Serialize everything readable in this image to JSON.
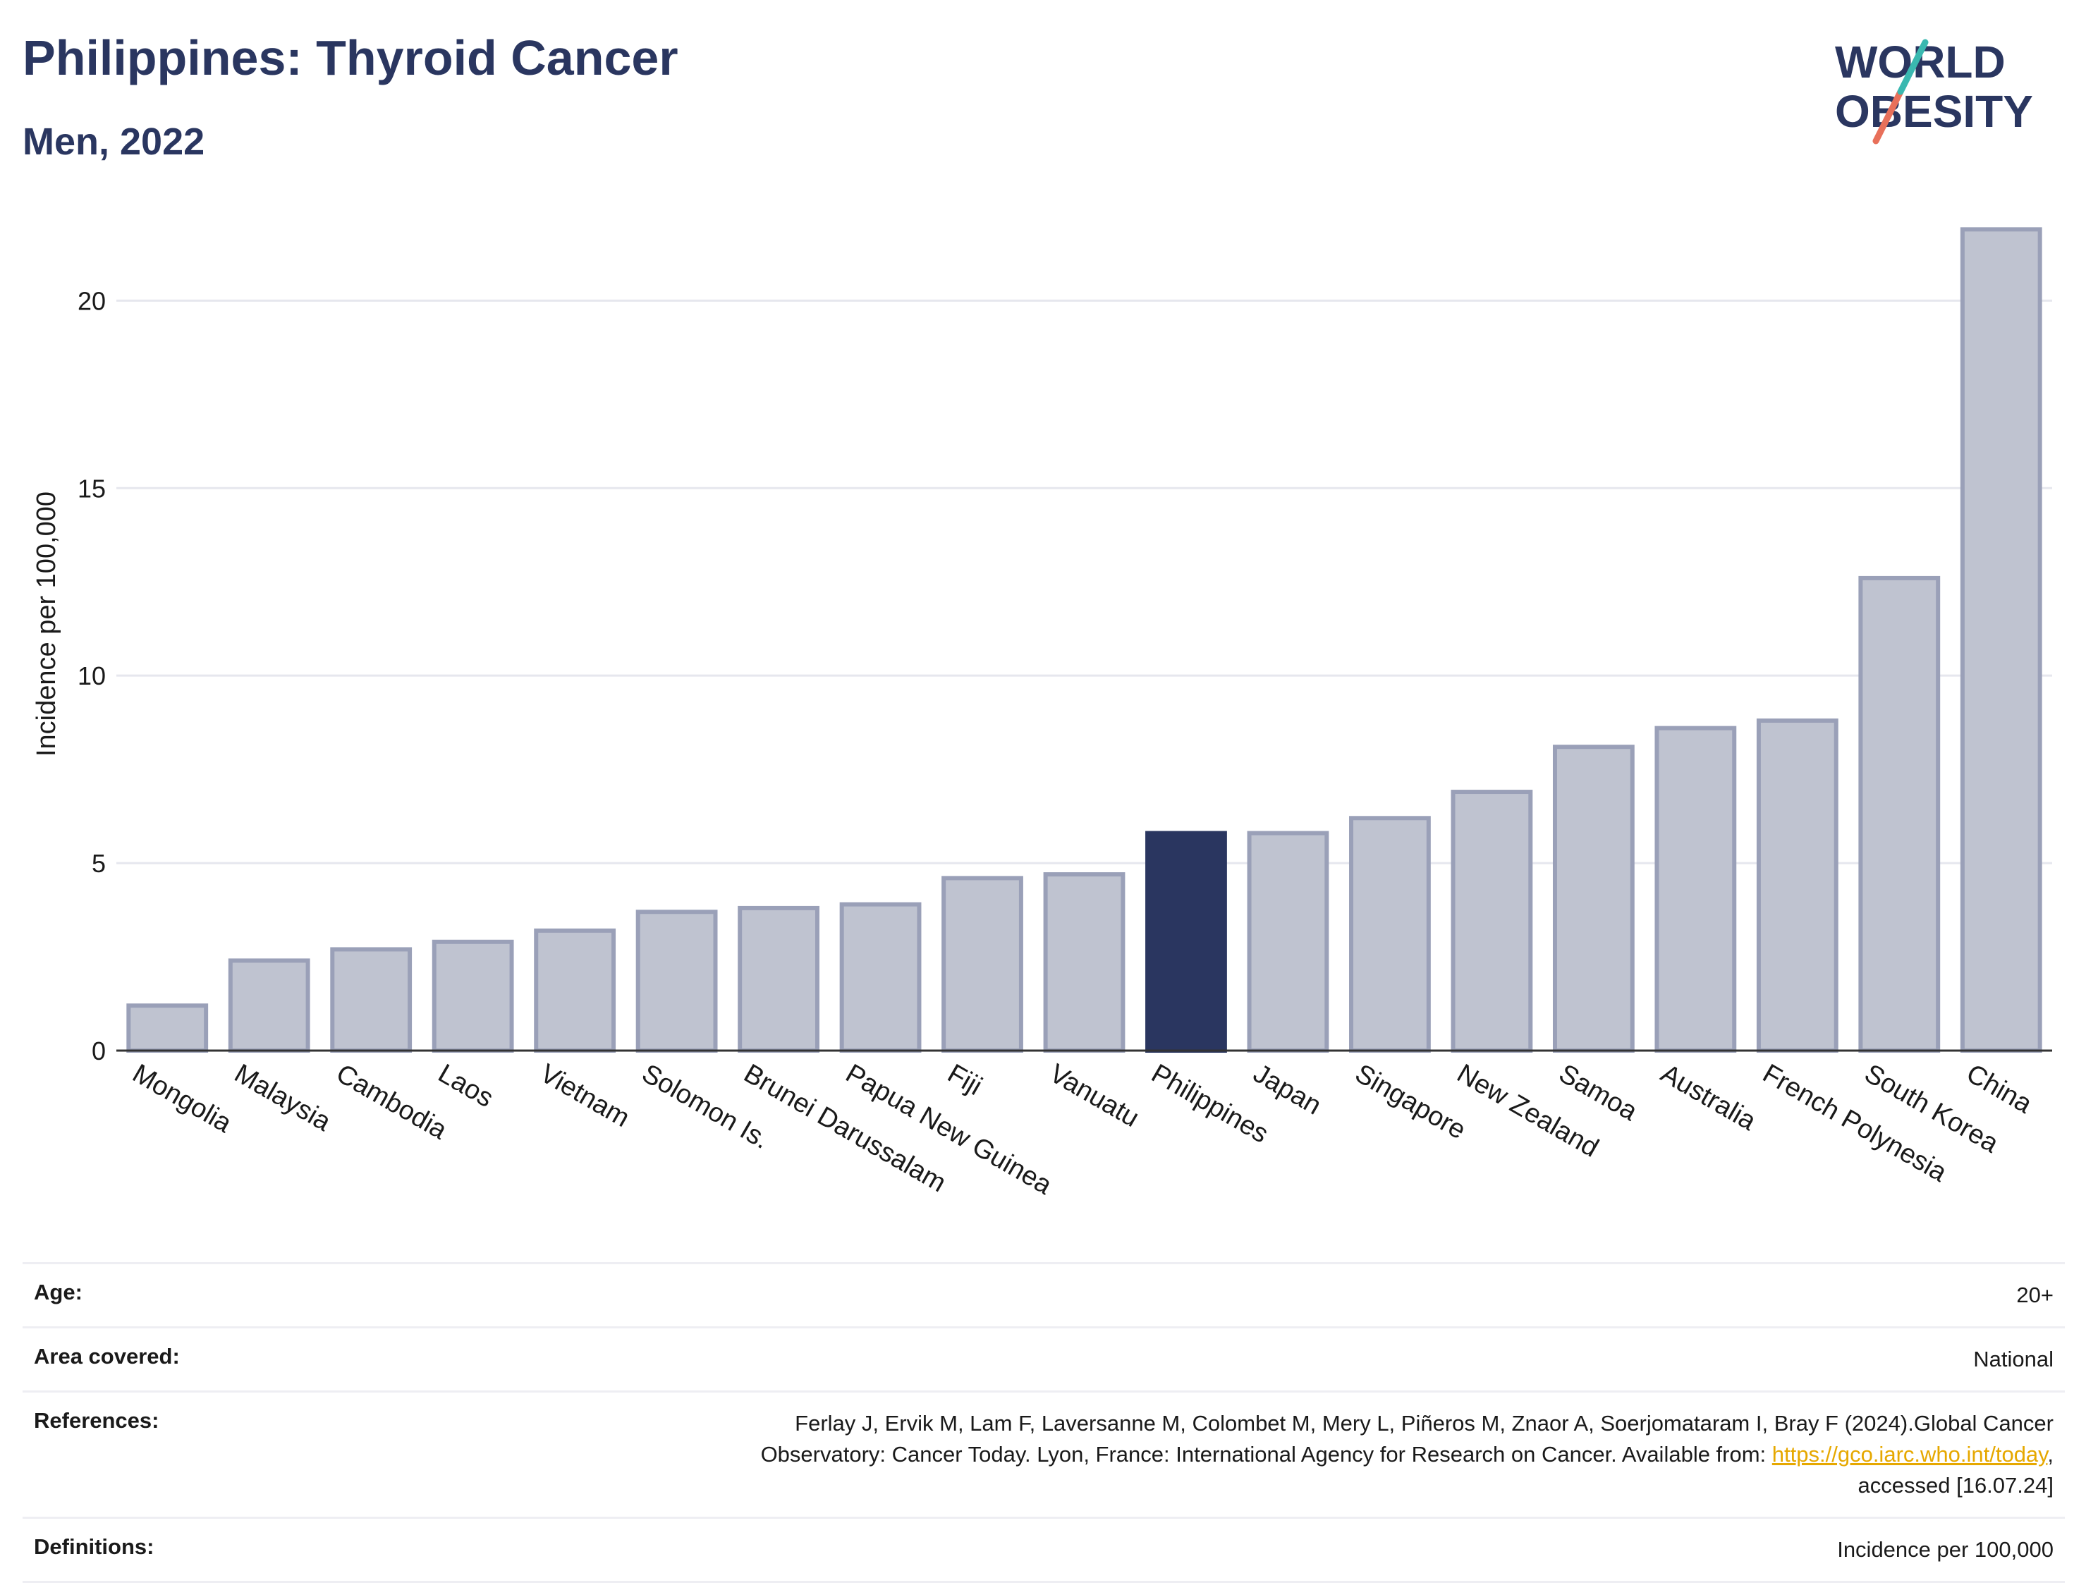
{
  "header": {
    "title": "Philippines: Thyroid Cancer",
    "subtitle": "Men, 2022",
    "logo_line1": "WORLD",
    "logo_line2": "OBESITY"
  },
  "colors": {
    "highlight": "#2a3660",
    "bar": "#bfc3d0",
    "bar_border": "#9aa0b8",
    "text": "#2a3660",
    "link": "#e6a800",
    "logo_teal": "#3ab8b0",
    "logo_coral": "#e8705a"
  },
  "chart_data": {
    "type": "bar",
    "ylabel": "Incidence per 100,000",
    "ylim": [
      0,
      22
    ],
    "yticks": [
      0,
      5,
      10,
      15,
      20
    ],
    "highlight": "Philippines",
    "grid": true,
    "categories": [
      "Mongolia",
      "Malaysia",
      "Cambodia",
      "Laos",
      "Vietnam",
      "Solomon Is.",
      "Brunei Darussalam",
      "Papua New Guinea",
      "Fiji",
      "Vanuatu",
      "Philippines",
      "Japan",
      "Singapore",
      "New Zealand",
      "Samoa",
      "Australia",
      "French Polynesia",
      "South Korea",
      "China"
    ],
    "values": [
      1.2,
      2.4,
      2.7,
      2.9,
      3.2,
      3.7,
      3.8,
      3.9,
      4.6,
      4.7,
      5.8,
      5.8,
      6.2,
      6.9,
      8.1,
      8.6,
      8.8,
      12.6,
      21.9
    ]
  },
  "info": {
    "age_label": "Age:",
    "age_value": "20+",
    "area_label": "Area covered:",
    "area_value": "National",
    "refs_label": "References:",
    "refs_line1": "Ferlay J, Ervik M, Lam F, Laversanne M, Colombet M, Mery L, Piñeros M, Znaor A, Soerjomataram I, Bray F (2024).Global Cancer",
    "refs_line2": "Observatory: Cancer Today. Lyon, France: International Agency for Research on Cancer. Available from: ",
    "refs_link": "https://gco.iarc.who.int/today",
    "refs_line2_end": ",",
    "refs_line3": "accessed [16.07.24]",
    "defs_label": "Definitions:",
    "defs_value": "Incidence per 100,000"
  }
}
